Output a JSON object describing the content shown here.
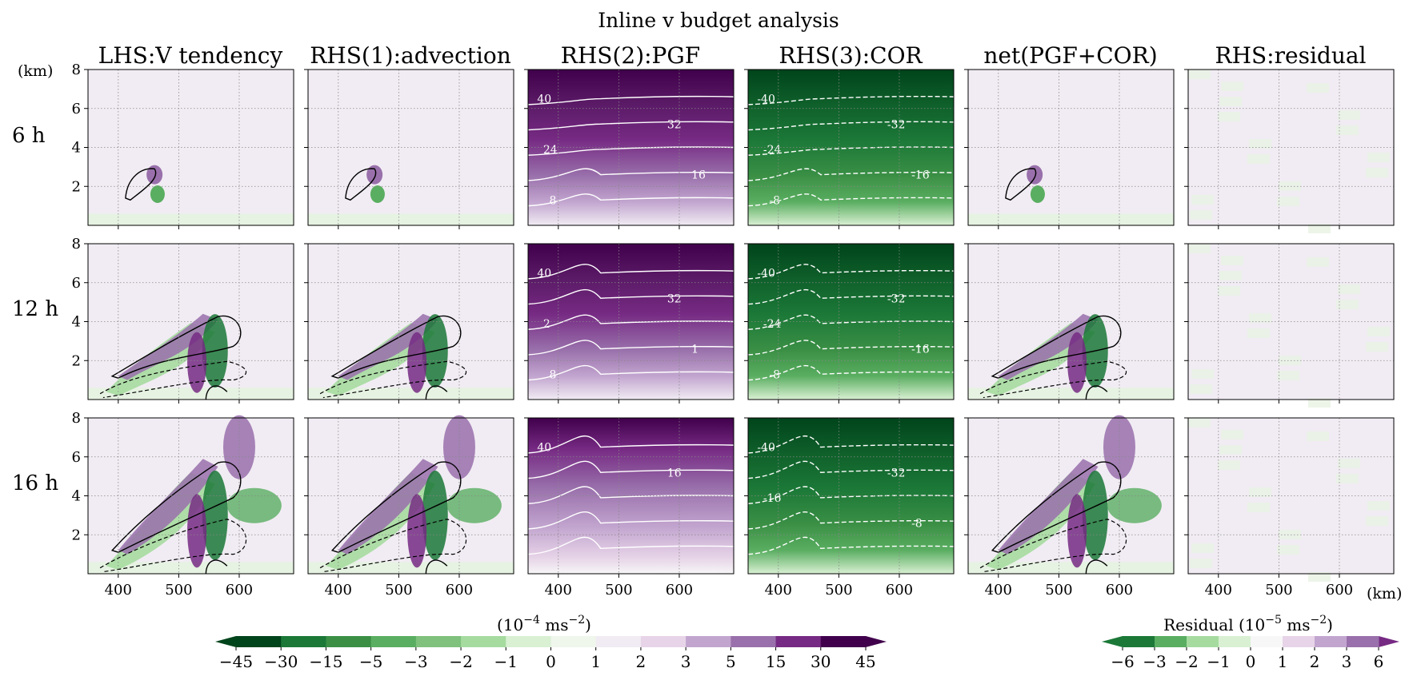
{
  "figure": {
    "title": "Inline v budget analysis",
    "columns": [
      "LHS:V tendency",
      "RHS(1):advection",
      "RHS(2):PGF",
      "RHS(3):COR",
      "net(PGF+COR)",
      "RHS:residual"
    ],
    "rows": [
      "6 h",
      "12 h",
      "16 h"
    ],
    "y_unit": "(km)",
    "x_unit": "(km)"
  },
  "colorbars": {
    "main": {
      "label": "(10^-4 ms^-2)",
      "ticks": [
        "−45",
        "−30",
        "−15",
        "−5",
        "−3",
        "−2",
        "−1",
        "0",
        "1",
        "2",
        "3",
        "5",
        "15",
        "30",
        "45"
      ],
      "colors": [
        "#00441b",
        "#1b7837",
        "#3a8f45",
        "#5aae61",
        "#7fc17d",
        "#a6dba0",
        "#d9f0d3",
        "#eff6ec",
        "#f1ecf3",
        "#e7d4e8",
        "#c2a5cf",
        "#9970ab",
        "#762a83",
        "#40004b"
      ],
      "extend_left": "#00441b",
      "extend_right": "#40004b"
    },
    "residual": {
      "label": "Residual (10^-5 ms^-2)",
      "ticks": [
        "−6",
        "−3",
        "−2",
        "−1",
        "0",
        "1",
        "2",
        "3",
        "6"
      ],
      "colors": [
        "#1b7837",
        "#5aae61",
        "#a6dba0",
        "#d9f0d3",
        "#f7f7f7",
        "#e7d4e8",
        "#c2a5cf",
        "#9970ab"
      ],
      "extend_left": "#1b7837",
      "extend_right": "#762a83"
    }
  },
  "chart_data": {
    "type": "heatmap",
    "x_axis": {
      "ticks": [
        400,
        500,
        600
      ],
      "range": [
        350,
        690
      ],
      "unit": "km"
    },
    "y_axis": {
      "ticks": [
        2,
        4,
        6,
        8
      ],
      "range": [
        0,
        8
      ],
      "unit": "km"
    },
    "grid": true,
    "pgf_contour_labels": {
      "6 h": [
        "40",
        "32",
        "24",
        "16",
        "8"
      ],
      "12 h": [
        "40",
        "32",
        "2",
        "1",
        "8"
      ],
      "16 h": [
        "40",
        "16"
      ]
    },
    "cor_contour_labels": {
      "6 h": [
        "-40",
        "-32",
        "-24",
        "-16",
        "-8"
      ],
      "12 h": [
        "-40",
        "-32",
        "-24",
        "-16",
        "-8"
      ],
      "16 h": [
        "-40",
        "-32",
        "-16",
        "-8"
      ]
    }
  }
}
